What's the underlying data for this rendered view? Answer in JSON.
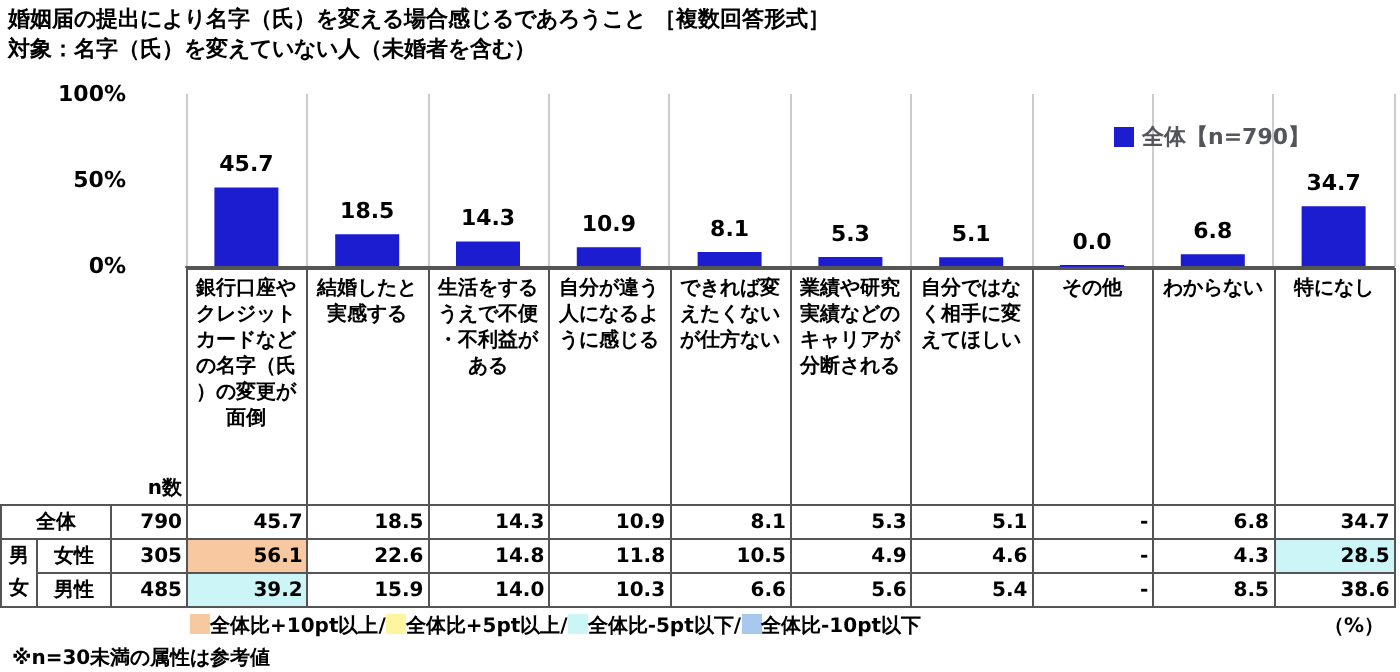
{
  "chart_data": {
    "type": "bar",
    "title": "婚姻届の提出により名字（氏）を変える場合感じるであろうこと ［複数回答形式］",
    "subtitle": "対象：名字（氏）を変えていない人（未婚者を含む）",
    "categories": [
      "銀行口座やクレジットカードなどの名字（氏）の変更が面倒",
      "結婚したと実感する",
      "生活をするうえで不便・不利益がある",
      "自分が違う人になるように感じる",
      "できれば変えたくないが仕方ない",
      "業績や研究実績などのキャリアが分断される",
      "自分ではなく相手に変えてほしい",
      "その他",
      "わからない",
      "特になし"
    ],
    "series": [
      {
        "name": "全体【n=790】",
        "color": "#1c1cd0",
        "values": [
          45.7,
          18.5,
          14.3,
          10.9,
          8.1,
          5.3,
          5.1,
          0.0,
          6.8,
          34.7
        ],
        "value_labels": [
          "45.7",
          "18.5",
          "14.3",
          "10.9",
          "8.1",
          "5.3",
          "5.1",
          "0.0",
          "6.8",
          "34.7"
        ]
      }
    ],
    "ylim": [
      0,
      100
    ],
    "yticks": [
      {
        "value": 0,
        "label": "0%"
      },
      {
        "value": 50,
        "label": "50%"
      },
      {
        "value": 100,
        "label": "100%"
      }
    ],
    "grid": "x",
    "legend": "top right",
    "annotations": [
      "n数",
      "全体",
      "790",
      "45.7",
      "18.5",
      "14.3",
      "10.9",
      "8.1",
      "5.3",
      "5.1",
      "-",
      "6.8",
      "34.7",
      "男女",
      "女性",
      "305",
      "56.1",
      "22.6",
      "14.8",
      "11.8",
      "10.5",
      "4.9",
      "4.6",
      "-",
      "4.3",
      "28.5",
      "男性",
      "485",
      "39.2",
      "15.9",
      "14.0",
      "10.3",
      "6.6",
      "5.6",
      "5.4",
      "-",
      "8.5",
      "38.6",
      "全体比+10pt以上/",
      "全体比+5pt以上/",
      "全体比-5pt以下/",
      "全体比-10pt以下",
      "（%）",
      "※n=30未満の属性は参考値"
    ]
  }
}
